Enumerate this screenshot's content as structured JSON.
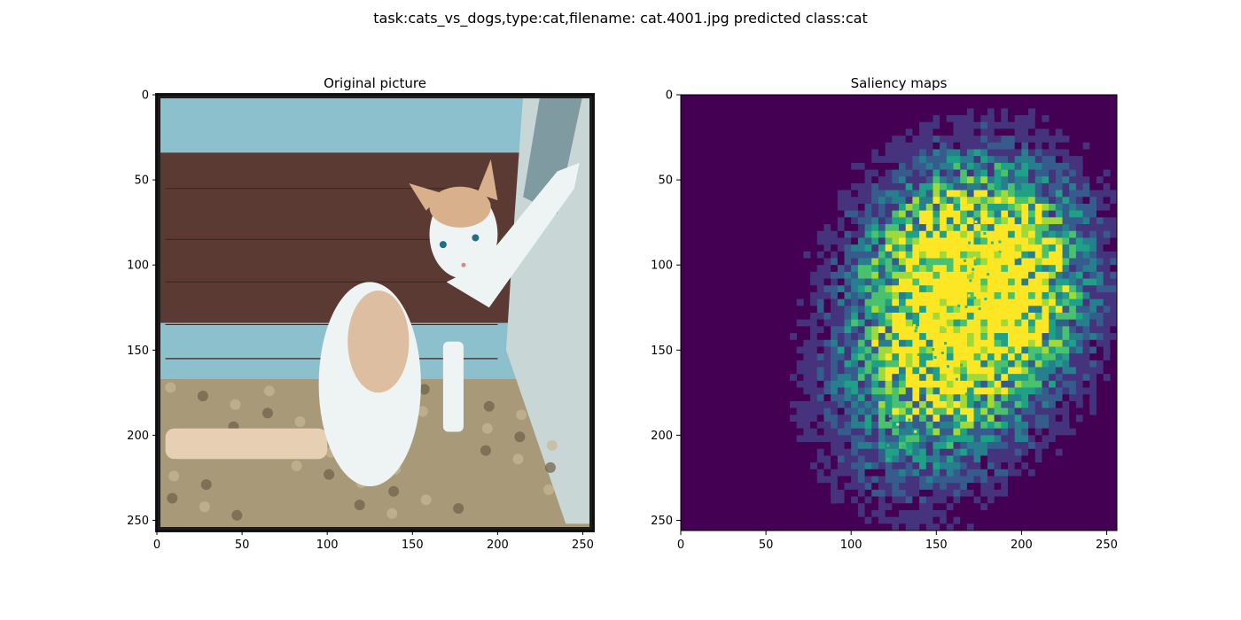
{
  "figure": {
    "suptitle": "task:cats_vs_dogs,type:cat,filename: cat.4001.jpg predicted class:cat"
  },
  "chart_data": [
    {
      "type": "heatmap",
      "title": "Original picture",
      "content": "cat-photo",
      "image_size": [
        256,
        256
      ],
      "xlim": [
        0,
        256
      ],
      "ylim": [
        256,
        0
      ],
      "xticks": [
        0,
        50,
        100,
        150,
        200,
        250
      ],
      "yticks": [
        0,
        50,
        100,
        150,
        200,
        250
      ],
      "colors": {
        "wall": "#8cc0cc",
        "floor": "#5a3a32",
        "rug": "#a89a78",
        "cat_body": "#eef3f4",
        "cat_patch": "#d9b08c",
        "baseboard": "#c9d6d6",
        "frame": "#1c1c1c"
      }
    },
    {
      "type": "heatmap",
      "title": "Saliency maps",
      "content": "saliency",
      "image_size": [
        256,
        256
      ],
      "xlim": [
        0,
        256
      ],
      "ylim": [
        256,
        0
      ],
      "xticks": [
        0,
        50,
        100,
        150,
        200,
        250
      ],
      "yticks": [
        0,
        50,
        100,
        150,
        200,
        250
      ],
      "colormap": "viridis",
      "colors": {
        "low": "#440154",
        "mid": "#31688e",
        "high": "#35b779",
        "peak": "#fde725"
      },
      "hotspots": [
        {
          "x": 175,
          "y": 85,
          "intensity": 1.0
        },
        {
          "x": 150,
          "y": 140,
          "intensity": 0.8
        },
        {
          "x": 182,
          "y": 105,
          "intensity": 0.85
        },
        {
          "x": 165,
          "y": 110,
          "intensity": 0.7
        },
        {
          "x": 160,
          "y": 160,
          "intensity": 0.55
        },
        {
          "x": 130,
          "y": 200,
          "intensity": 0.45
        }
      ]
    }
  ]
}
